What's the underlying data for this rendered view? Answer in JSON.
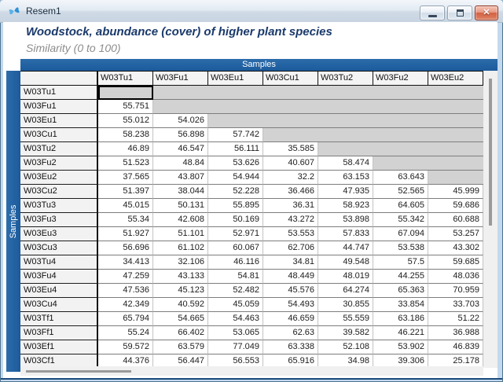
{
  "window": {
    "title": "Resem1",
    "icon": "primer-butterfly",
    "buttons": {
      "minimize": "minimize",
      "restore": "restore",
      "close": "close"
    }
  },
  "header": {
    "line1": "Woodstock, abundance (cover) of higher plant species",
    "line2": "Similarity (0 to 100)"
  },
  "matrix": {
    "banner_top": "Samples",
    "banner_left": "Samples",
    "columns": [
      "W03Tu1",
      "W03Fu1",
      "W03Eu1",
      "W03Cu1",
      "W03Tu2",
      "W03Fu2",
      "W03Eu2"
    ],
    "rows": [
      {
        "label": "W03Tu1",
        "values": []
      },
      {
        "label": "W03Fu1",
        "values": [
          "55.751"
        ]
      },
      {
        "label": "W03Eu1",
        "values": [
          "55.012",
          "54.026"
        ]
      },
      {
        "label": "W03Cu1",
        "values": [
          "58.238",
          "56.898",
          "57.742"
        ]
      },
      {
        "label": "W03Tu2",
        "values": [
          "46.89",
          "46.547",
          "56.111",
          "35.585"
        ]
      },
      {
        "label": "W03Fu2",
        "values": [
          "51.523",
          "48.84",
          "53.626",
          "40.607",
          "58.474"
        ]
      },
      {
        "label": "W03Eu2",
        "values": [
          "37.565",
          "43.807",
          "54.944",
          "32.2",
          "63.153",
          "63.643"
        ]
      },
      {
        "label": "W03Cu2",
        "values": [
          "51.397",
          "38.044",
          "52.228",
          "36.466",
          "47.935",
          "52.565",
          "45.999"
        ]
      },
      {
        "label": "W03Tu3",
        "values": [
          "45.015",
          "50.131",
          "55.895",
          "36.31",
          "58.923",
          "64.605",
          "59.686"
        ]
      },
      {
        "label": "W03Fu3",
        "values": [
          "55.34",
          "42.608",
          "50.169",
          "43.272",
          "53.898",
          "55.342",
          "60.688"
        ]
      },
      {
        "label": "W03Eu3",
        "values": [
          "51.927",
          "51.101",
          "52.971",
          "53.553",
          "57.833",
          "67.094",
          "53.257"
        ]
      },
      {
        "label": "W03Cu3",
        "values": [
          "56.696",
          "61.102",
          "60.067",
          "62.706",
          "44.747",
          "53.538",
          "43.302"
        ]
      },
      {
        "label": "W03Tu4",
        "values": [
          "34.413",
          "32.106",
          "46.116",
          "34.81",
          "49.548",
          "57.5",
          "59.685"
        ]
      },
      {
        "label": "W03Fu4",
        "values": [
          "47.259",
          "43.133",
          "54.81",
          "48.449",
          "48.019",
          "44.255",
          "48.036"
        ]
      },
      {
        "label": "W03Eu4",
        "values": [
          "47.536",
          "45.123",
          "52.482",
          "45.576",
          "64.274",
          "65.363",
          "70.959"
        ]
      },
      {
        "label": "W03Cu4",
        "values": [
          "42.349",
          "40.592",
          "45.059",
          "54.493",
          "30.855",
          "33.854",
          "33.703"
        ]
      },
      {
        "label": "W03Tf1",
        "values": [
          "65.794",
          "54.665",
          "54.463",
          "46.659",
          "55.559",
          "63.186",
          "51.22"
        ]
      },
      {
        "label": "W03Ff1",
        "values": [
          "55.24",
          "66.402",
          "53.065",
          "62.63",
          "39.582",
          "46.221",
          "36.988"
        ]
      },
      {
        "label": "W03Ef1",
        "values": [
          "59.572",
          "63.579",
          "77.049",
          "63.338",
          "52.108",
          "53.902",
          "46.839"
        ]
      },
      {
        "label": "W03Cf1",
        "values": [
          "44.376",
          "56.447",
          "56.553",
          "65.916",
          "34.98",
          "39.306",
          "25.178"
        ]
      }
    ],
    "selected_cell": {
      "row": "W03Tu1",
      "col": "W03Tu1"
    },
    "colors": {
      "banner_blue": "#215f9f",
      "diagonal_gray": "#d2d2d2",
      "header_fill": "#f2f2f2",
      "close_button_red": "#d55f41",
      "title_text_navy": "#1b3a6b"
    }
  }
}
